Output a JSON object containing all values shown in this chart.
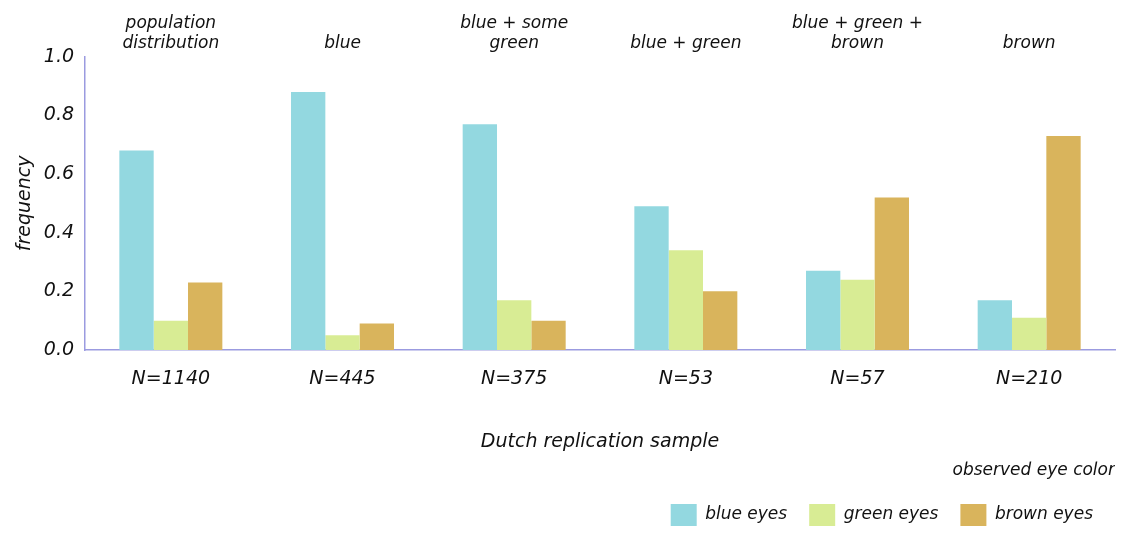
{
  "chart_data": {
    "type": "bar",
    "xlabel": "Dutch replication sample",
    "ylabel": "frequency",
    "legend_title": "observed eye color",
    "legend": "bottom right",
    "grid": false,
    "categories": [
      "population distribution",
      "blue",
      "blue + some green",
      "blue + green",
      "blue + green + brown",
      "brown"
    ],
    "ylim": [
      0,
      1
    ],
    "yticks": [
      {
        "value": 0,
        "label": "0.0"
      },
      {
        "value": 0.2,
        "label": "0.2"
      },
      {
        "value": 0.4,
        "label": "0.4"
      },
      {
        "value": 0.6,
        "label": "0.6"
      },
      {
        "value": 0.8,
        "label": "0.8"
      },
      {
        "value": 1,
        "label": "1.0"
      }
    ],
    "series": [
      {
        "name": "blue eyes",
        "color": "#93d8e0",
        "values": [
          0.68,
          0.88,
          0.77,
          0.49,
          0.27,
          0.17
        ]
      },
      {
        "name": "green eyes",
        "color": "#d8ec94",
        "values": [
          0.1,
          0.05,
          0.17,
          0.34,
          0.24,
          0.11
        ]
      },
      {
        "name": "brown eyes",
        "color": "#d9b45c",
        "values": [
          0.23,
          0.09,
          0.1,
          0.2,
          0.52,
          0.73
        ]
      }
    ],
    "annotations": [
      "N=1140",
      "N=445",
      "N=375",
      "N=53",
      "N=57",
      "N=210"
    ]
  }
}
